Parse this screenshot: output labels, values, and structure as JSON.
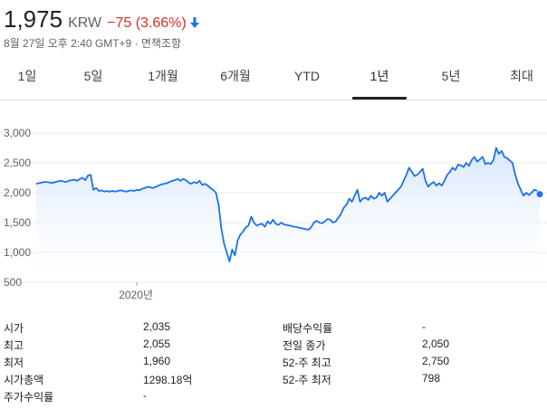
{
  "header": {
    "price": "1,975",
    "currency": "KRW",
    "change": "−75 (3.66%)",
    "timestamp": "8월 27일 오후 2:40 GMT+9 · 면책조항",
    "colors": {
      "down": "#d93025",
      "arrow": "#1a73e8"
    }
  },
  "tabs": [
    {
      "label": "1일"
    },
    {
      "label": "5일"
    },
    {
      "label": "1개월"
    },
    {
      "label": "6개월"
    },
    {
      "label": "YTD"
    },
    {
      "label": "1년"
    },
    {
      "label": "5년"
    },
    {
      "label": "최대"
    }
  ],
  "active_tab": "1년",
  "chart_data": {
    "type": "area",
    "ylim": [
      500,
      3000
    ],
    "yticks": [
      "3,000",
      "2,500",
      "2,000",
      "1,500",
      "1,000",
      "500"
    ],
    "yticks_values": [
      3000,
      2500,
      2000,
      1500,
      1000,
      500
    ],
    "xlabel_ticks": [
      {
        "label": "2020년",
        "x": 0.2
      }
    ],
    "line_color": "#1a73e8",
    "fill_color": "#e8f0fe",
    "series": [
      {
        "values": [
          2150,
          2160,
          2170,
          2180,
          2180,
          2170,
          2165,
          2180,
          2190,
          2200,
          2190,
          2180,
          2200,
          2210,
          2220,
          2200,
          2230,
          2250,
          2210,
          2290,
          2300,
          2050,
          2080,
          2030,
          2040,
          2020,
          2030,
          2020,
          2030,
          2020,
          2030,
          2040,
          2030,
          2020,
          2030,
          2040,
          2030,
          2050,
          2040,
          2070,
          2080,
          2100,
          2090,
          2080,
          2100,
          2120,
          2140,
          2150,
          2160,
          2180,
          2200,
          2210,
          2230,
          2200,
          2230,
          2210,
          2170,
          2150,
          2180,
          2160,
          2200,
          2130,
          2150,
          2120,
          2080,
          2050,
          2000,
          1800,
          1400,
          1150,
          1000,
          850,
          1050,
          950,
          1200,
          1300,
          1350,
          1420,
          1450,
          1600,
          1500,
          1450,
          1470,
          1480,
          1430,
          1520,
          1480,
          1550,
          1480,
          1460,
          1500,
          1470,
          1460,
          1450,
          1440,
          1430,
          1420,
          1410,
          1400,
          1390,
          1380,
          1420,
          1500,
          1530,
          1500,
          1490,
          1520,
          1560,
          1550,
          1500,
          1520,
          1580,
          1650,
          1750,
          1800,
          1900,
          1850,
          1950,
          2050,
          1850,
          1900,
          1920,
          1880,
          1950,
          1900,
          1920,
          2000,
          1950,
          2000,
          1850,
          1900,
          1950,
          2000,
          2050,
          2100,
          2200,
          2300,
          2420,
          2350,
          2280,
          2300,
          2350,
          2400,
          2200,
          2100,
          2150,
          2180,
          2120,
          2160,
          2120,
          2200,
          2300,
          2350,
          2420,
          2380,
          2470,
          2460,
          2430,
          2500,
          2450,
          2550,
          2600,
          2520,
          2560,
          2600,
          2480,
          2500,
          2480,
          2550,
          2750,
          2650,
          2700,
          2600,
          2580,
          2540,
          2500,
          2300,
          2150,
          2050,
          1950,
          2000,
          1960,
          2000,
          2050,
          2030,
          1975
        ]
      }
    ]
  },
  "stats": {
    "left": [
      {
        "label": "시가",
        "value": "2,035"
      },
      {
        "label": "최고",
        "value": "2,055"
      },
      {
        "label": "최저",
        "value": "1,960"
      },
      {
        "label": "시가총액",
        "value": "1298.18억"
      },
      {
        "label": "주가수익률",
        "value": "-"
      }
    ],
    "right": [
      {
        "label": "배당수익률",
        "value": "-"
      },
      {
        "label": "전일 종가",
        "value": "2,050"
      },
      {
        "label": "52-주 최고",
        "value": "2,750"
      },
      {
        "label": "52-주 최저",
        "value": "798"
      }
    ]
  }
}
